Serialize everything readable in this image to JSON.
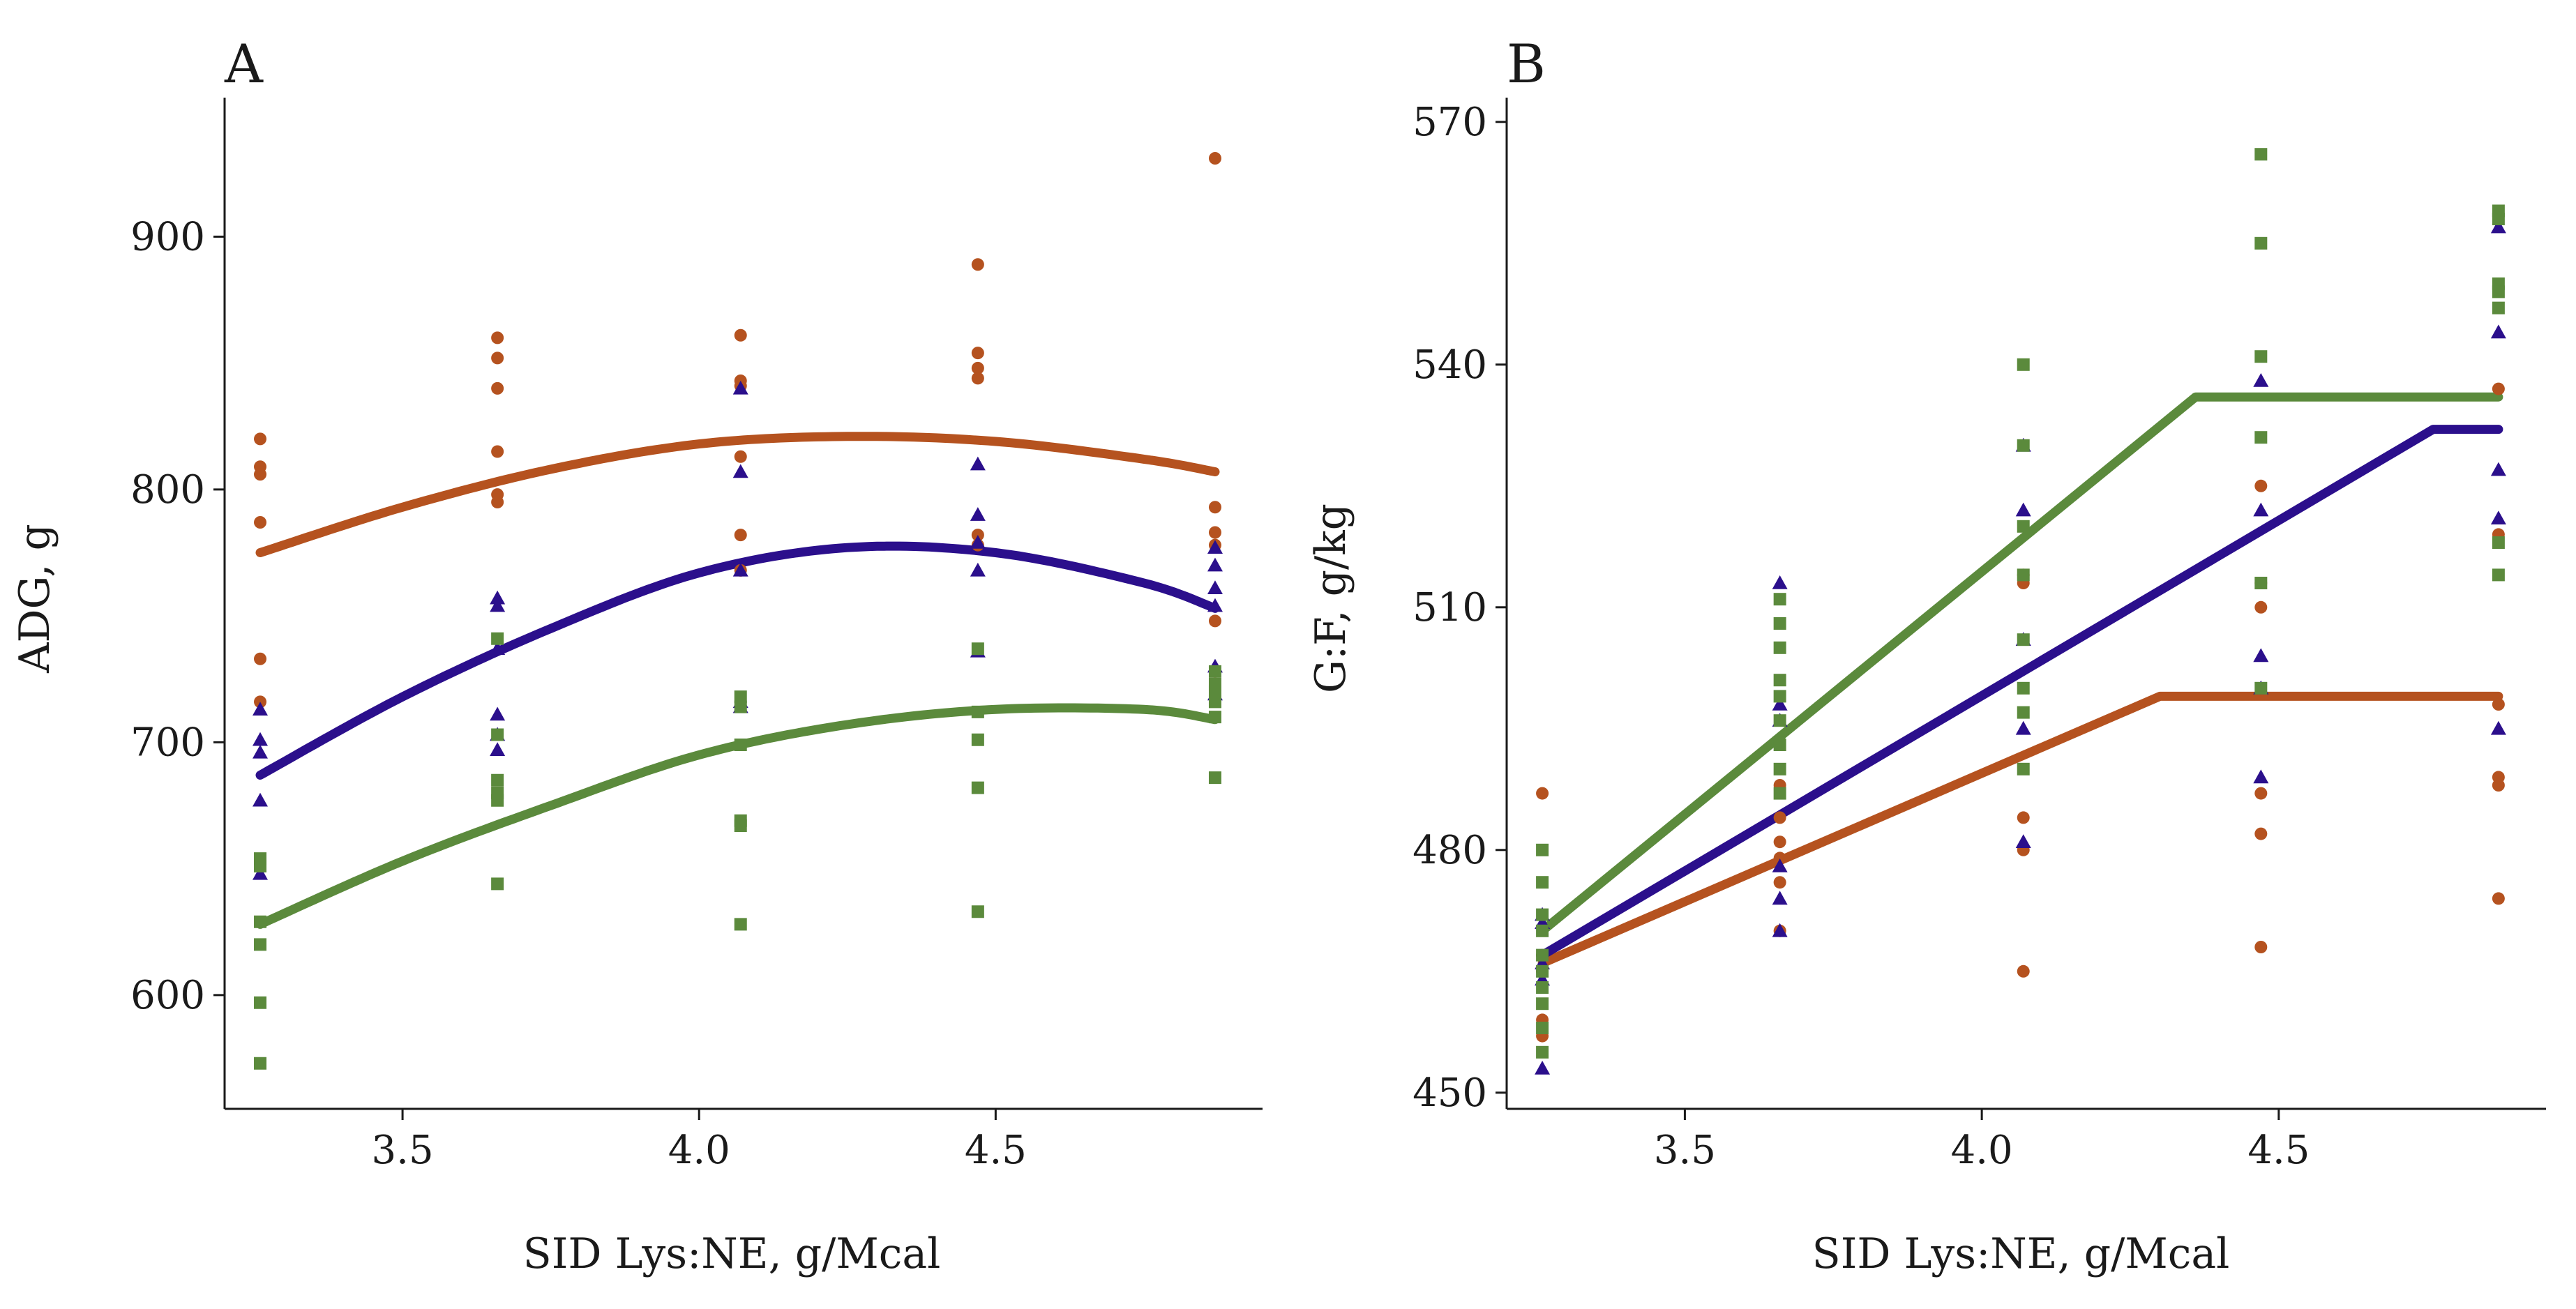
{
  "chart_data": [
    {
      "panel_label": "A",
      "type": "scatter",
      "xlabel": "SID Lys:NE, g/Mcal",
      "ylabel": "ADG, g",
      "xlim": [
        3.2,
        4.95
      ],
      "ylim": [
        555,
        955
      ],
      "xticks": [
        3.5,
        4.0,
        4.5
      ],
      "xtick_labels": [
        "3.5",
        "4.0",
        "4.5"
      ],
      "yticks": [
        600,
        700,
        800,
        900
      ],
      "ytick_labels": [
        "600",
        "700",
        "800",
        "900"
      ],
      "series": [
        {
          "name": "orange",
          "color": "#b5521f",
          "marker": "circle",
          "points": [
            [
              3.26,
              820
            ],
            [
              3.26,
              809
            ],
            [
              3.26,
              806
            ],
            [
              3.26,
              787
            ],
            [
              3.26,
              733
            ],
            [
              3.26,
              716
            ],
            [
              3.66,
              860
            ],
            [
              3.66,
              852
            ],
            [
              3.66,
              840
            ],
            [
              3.66,
              815
            ],
            [
              3.66,
              798
            ],
            [
              3.66,
              795
            ],
            [
              4.07,
              861
            ],
            [
              4.07,
              843
            ],
            [
              4.07,
              841
            ],
            [
              4.07,
              813
            ],
            [
              4.07,
              782
            ],
            [
              4.07,
              768
            ],
            [
              4.47,
              889
            ],
            [
              4.47,
              854
            ],
            [
              4.47,
              848
            ],
            [
              4.47,
              844
            ],
            [
              4.47,
              782
            ],
            [
              4.47,
              778
            ],
            [
              4.87,
              931
            ],
            [
              4.87,
              793
            ],
            [
              4.87,
              783
            ],
            [
              4.87,
              778
            ],
            [
              4.87,
              748
            ],
            [
              4.87,
              728
            ]
          ],
          "fit": {
            "kind": "quadratic",
            "x": [
              3.26,
              3.5,
              3.75,
              4.0,
              4.25,
              4.5,
              4.75,
              4.87
            ],
            "y": [
              775,
              793,
              808,
              818,
              821,
              819,
              812,
              807
            ]
          }
        },
        {
          "name": "blue",
          "color": "#2b0f8c",
          "marker": "triangle",
          "points": [
            [
              3.26,
              713
            ],
            [
              3.26,
              701
            ],
            [
              3.26,
              696
            ],
            [
              3.26,
              677
            ],
            [
              3.26,
              648
            ],
            [
              3.66,
              757
            ],
            [
              3.66,
              754
            ],
            [
              3.66,
              737
            ],
            [
              3.66,
              711
            ],
            [
              3.66,
              703
            ],
            [
              3.66,
              697
            ],
            [
              4.07,
              840
            ],
            [
              4.07,
              807
            ],
            [
              4.07,
              768
            ],
            [
              4.07,
              716
            ],
            [
              4.07,
              714
            ],
            [
              4.47,
              810
            ],
            [
              4.47,
              790
            ],
            [
              4.47,
              779
            ],
            [
              4.47,
              768
            ],
            [
              4.47,
              736
            ],
            [
              4.87,
              777
            ],
            [
              4.87,
              770
            ],
            [
              4.87,
              761
            ],
            [
              4.87,
              754
            ],
            [
              4.87,
              730
            ],
            [
              4.87,
              719
            ]
          ],
          "fit": {
            "kind": "quadratic",
            "x": [
              3.26,
              3.5,
              3.75,
              4.0,
              4.25,
              4.5,
              4.75,
              4.87
            ],
            "y": [
              687,
              718,
              745,
              767,
              777,
              775,
              763,
              753
            ]
          }
        },
        {
          "name": "green",
          "color": "#5b8a3c",
          "marker": "square",
          "points": [
            [
              3.26,
              654
            ],
            [
              3.26,
              651
            ],
            [
              3.26,
              629
            ],
            [
              3.26,
              620
            ],
            [
              3.26,
              597
            ],
            [
              3.26,
              573
            ],
            [
              3.66,
              741
            ],
            [
              3.66,
              703
            ],
            [
              3.66,
              685
            ],
            [
              3.66,
              680
            ],
            [
              3.66,
              677
            ],
            [
              3.66,
              644
            ],
            [
              4.07,
              718
            ],
            [
              4.07,
              714
            ],
            [
              4.07,
              699
            ],
            [
              4.07,
              669
            ],
            [
              4.07,
              667
            ],
            [
              4.07,
              628
            ],
            [
              4.47,
              737
            ],
            [
              4.47,
              712
            ],
            [
              4.47,
              701
            ],
            [
              4.47,
              682
            ],
            [
              4.47,
              633
            ],
            [
              4.87,
              728
            ],
            [
              4.87,
              723
            ],
            [
              4.87,
              720
            ],
            [
              4.87,
              716
            ],
            [
              4.87,
              710
            ],
            [
              4.87,
              686
            ]
          ],
          "fit": {
            "kind": "quadratic",
            "x": [
              3.26,
              3.5,
              3.75,
              4.0,
              4.25,
              4.5,
              4.75,
              4.87
            ],
            "y": [
              628,
              653,
              675,
              695,
              707,
              713,
              713,
              709
            ]
          }
        }
      ]
    },
    {
      "panel_label": "B",
      "type": "scatter",
      "xlabel": "SID Lys:NE, g/Mcal",
      "ylabel": "G:F, g/kg",
      "xlim": [
        3.2,
        4.95
      ],
      "ylim": [
        448,
        573
      ],
      "xticks": [
        3.5,
        4.0,
        4.5
      ],
      "xtick_labels": [
        "3.5",
        "4.0",
        "4.5"
      ],
      "yticks": [
        450,
        480,
        510,
        540,
        570
      ],
      "ytick_labels": [
        "450",
        "480",
        "510",
        "540",
        "570"
      ],
      "series": [
        {
          "name": "orange",
          "color": "#b5521f",
          "marker": "circle",
          "points": [
            [
              3.26,
              487
            ],
            [
              3.26,
              467
            ],
            [
              3.26,
              465
            ],
            [
              3.26,
              459
            ],
            [
              3.26,
              457
            ],
            [
              3.66,
              488
            ],
            [
              3.66,
              484
            ],
            [
              3.66,
              481
            ],
            [
              3.66,
              479
            ],
            [
              3.66,
              476
            ],
            [
              3.66,
              470
            ],
            [
              4.07,
              514
            ],
            [
              4.07,
              513
            ],
            [
              4.07,
              484
            ],
            [
              4.07,
              480
            ],
            [
              4.07,
              465
            ],
            [
              4.47,
              525
            ],
            [
              4.47,
              513
            ],
            [
              4.47,
              510
            ],
            [
              4.47,
              487
            ],
            [
              4.47,
              482
            ],
            [
              4.47,
              468
            ],
            [
              4.87,
              537
            ],
            [
              4.87,
              519
            ],
            [
              4.87,
              498
            ],
            [
              4.87,
              489
            ],
            [
              4.87,
              488
            ],
            [
              4.87,
              474
            ]
          ],
          "fit": {
            "kind": "broken-line",
            "x": [
              3.26,
              4.3,
              4.87
            ],
            "y": [
              466,
              499,
              499
            ]
          }
        },
        {
          "name": "blue",
          "color": "#2b0f8c",
          "marker": "triangle",
          "points": [
            [
              3.26,
              472
            ],
            [
              3.26,
              471
            ],
            [
              3.26,
              466
            ],
            [
              3.26,
              464
            ],
            [
              3.26,
              453
            ],
            [
              3.66,
              513
            ],
            [
              3.66,
              498
            ],
            [
              3.66,
              496
            ],
            [
              3.66,
              478
            ],
            [
              3.66,
              474
            ],
            [
              3.66,
              470
            ],
            [
              4.07,
              530
            ],
            [
              4.07,
              522
            ],
            [
              4.07,
              506
            ],
            [
              4.07,
              495
            ],
            [
              4.07,
              481
            ],
            [
              4.47,
              538
            ],
            [
              4.47,
              522
            ],
            [
              4.47,
              504
            ],
            [
              4.47,
              500
            ],
            [
              4.47,
              489
            ],
            [
              4.87,
              557
            ],
            [
              4.87,
              544
            ],
            [
              4.87,
              527
            ],
            [
              4.87,
              521
            ],
            [
              4.87,
              495
            ]
          ],
          "fit": {
            "kind": "broken-line",
            "x": [
              3.26,
              4.76,
              4.87
            ],
            "y": [
              467,
              532,
              532
            ]
          }
        },
        {
          "name": "green",
          "color": "#5b8a3c",
          "marker": "square",
          "points": [
            [
              3.26,
              480
            ],
            [
              3.26,
              476
            ],
            [
              3.26,
              472
            ],
            [
              3.26,
              470
            ],
            [
              3.26,
              467
            ],
            [
              3.26,
              465
            ],
            [
              3.26,
              463
            ],
            [
              3.26,
              461
            ],
            [
              3.26,
              458
            ],
            [
              3.26,
              455
            ],
            [
              3.66,
              511
            ],
            [
              3.66,
              508
            ],
            [
              3.66,
              505
            ],
            [
              3.66,
              501
            ],
            [
              3.66,
              499
            ],
            [
              3.66,
              496
            ],
            [
              3.66,
              493
            ],
            [
              3.66,
              490
            ],
            [
              3.66,
              487
            ],
            [
              4.07,
              540
            ],
            [
              4.07,
              530
            ],
            [
              4.07,
              520
            ],
            [
              4.07,
              514
            ],
            [
              4.07,
              506
            ],
            [
              4.07,
              500
            ],
            [
              4.07,
              497
            ],
            [
              4.07,
              490
            ],
            [
              4.47,
              566
            ],
            [
              4.47,
              555
            ],
            [
              4.47,
              541
            ],
            [
              4.47,
              531
            ],
            [
              4.47,
              513
            ],
            [
              4.47,
              500
            ],
            [
              4.87,
              559
            ],
            [
              4.87,
              558
            ],
            [
              4.87,
              550
            ],
            [
              4.87,
              549
            ],
            [
              4.87,
              547
            ],
            [
              4.87,
              518
            ],
            [
              4.87,
              514
            ]
          ],
          "fit": {
            "kind": "broken-line",
            "x": [
              3.26,
              4.36,
              4.87
            ],
            "y": [
              470,
              536,
              536
            ]
          }
        }
      ]
    }
  ]
}
